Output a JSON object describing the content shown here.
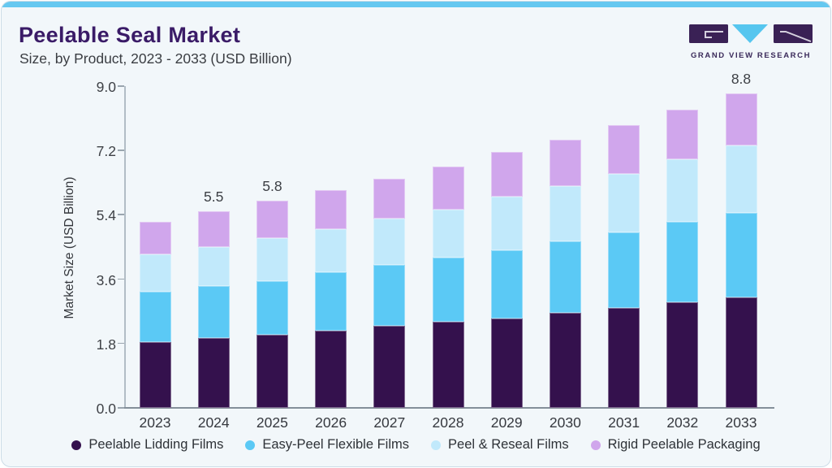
{
  "page": {
    "title": "Peelable Seal Market",
    "subtitle": "Size, by Product, 2023 - 2033 (USD Billion)"
  },
  "logo": {
    "text": "GRAND VIEW RESEARCH",
    "mark_dark_color": "#3a2155",
    "mark_accent_color": "#56c6ef"
  },
  "chart_data": {
    "type": "bar",
    "stacked": true,
    "title": "Peelable Seal Market Size, by Product, 2023 - 2033 (USD Billion)",
    "categories": [
      "2023",
      "2024",
      "2025",
      "2026",
      "2027",
      "2028",
      "2029",
      "2030",
      "2031",
      "2032",
      "2033"
    ],
    "series": [
      {
        "name": "Peelable Lidding Films",
        "color": "#34114d",
        "values": [
          1.85,
          1.95,
          2.05,
          2.15,
          2.3,
          2.4,
          2.5,
          2.65,
          2.8,
          2.95,
          3.1
        ]
      },
      {
        "name": "Easy-Peel Flexible Films",
        "color": "#5bc9f5",
        "values": [
          1.4,
          1.45,
          1.5,
          1.65,
          1.7,
          1.8,
          1.9,
          2.0,
          2.1,
          2.25,
          2.35
        ]
      },
      {
        "name": "Peel & Reseal Films",
        "color": "#c1e9fb",
        "values": [
          1.05,
          1.1,
          1.2,
          1.2,
          1.3,
          1.35,
          1.5,
          1.55,
          1.65,
          1.75,
          1.9
        ]
      },
      {
        "name": "Rigid Peelable Packaging",
        "color": "#d0a6ec",
        "values": [
          0.9,
          1.0,
          1.05,
          1.1,
          1.1,
          1.2,
          1.25,
          1.3,
          1.35,
          1.4,
          1.45
        ]
      }
    ],
    "totals": [
      5.2,
      5.5,
      5.8,
      6.1,
      6.4,
      6.75,
      7.15,
      7.5,
      7.9,
      8.35,
      8.8
    ],
    "bar_labels": {
      "2024": "5.5",
      "2025": "5.8",
      "2033": "8.8"
    },
    "ylabel": "Market Size (USD Billion)",
    "yticks": [
      "9.0",
      "7.2",
      "5.4",
      "3.6",
      "1.8",
      "0.0"
    ],
    "ylim": [
      0,
      9
    ],
    "grid": false,
    "legend_position": "bottom"
  }
}
